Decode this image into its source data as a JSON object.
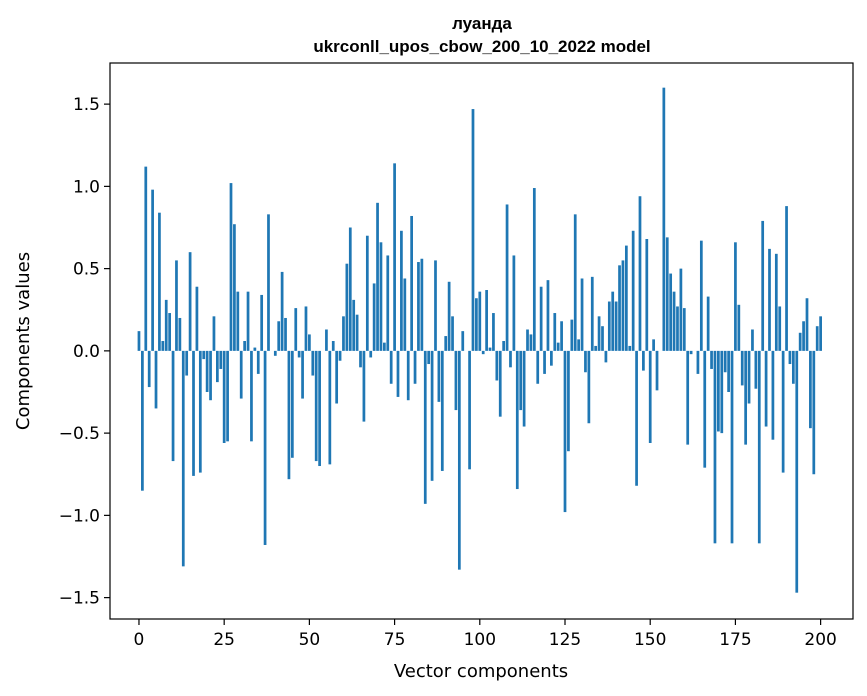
{
  "chart_data": {
    "type": "bar",
    "title": "луанда",
    "subtitle": "ukrconll_upos_cbow_200_10_2022 model",
    "xlabel": "Vector components",
    "ylabel": "Components values",
    "xlim": [
      -8.5,
      209.5
    ],
    "ylim": [
      -1.63,
      1.75
    ],
    "xticks": [
      0,
      25,
      50,
      75,
      100,
      125,
      150,
      175,
      200
    ],
    "xtick_labels": [
      "0",
      "25",
      "50",
      "75",
      "100",
      "125",
      "150",
      "175",
      "200"
    ],
    "yticks": [
      -1.5,
      -1.0,
      -0.5,
      0.0,
      0.5,
      1.0,
      1.5
    ],
    "ytick_labels": [
      "−1.5",
      "−1.0",
      "−0.5",
      "0.0",
      "0.5",
      "1.0",
      "1.5"
    ],
    "grid": false,
    "bar_color": "#1f77b4",
    "values": [
      0.12,
      -0.85,
      1.12,
      -0.22,
      0.98,
      -0.35,
      0.84,
      0.06,
      0.31,
      0.23,
      -0.67,
      0.55,
      0.2,
      -1.31,
      -0.15,
      0.6,
      -0.76,
      0.39,
      -0.74,
      -0.05,
      -0.25,
      -0.3,
      0.21,
      -0.19,
      -0.11,
      -0.56,
      -0.55,
      1.02,
      0.77,
      0.36,
      -0.29,
      0.06,
      0.36,
      -0.55,
      0.02,
      -0.14,
      0.34,
      -1.18,
      0.83,
      0.0,
      -0.03,
      0.18,
      0.48,
      0.2,
      -0.78,
      -0.65,
      0.26,
      -0.04,
      -0.29,
      0.27,
      0.1,
      -0.15,
      -0.67,
      -0.7,
      0.0,
      0.13,
      -0.69,
      0.06,
      -0.32,
      -0.06,
      0.21,
      0.53,
      0.75,
      0.31,
      0.22,
      -0.1,
      -0.43,
      0.7,
      -0.04,
      0.41,
      0.9,
      0.66,
      0.05,
      0.58,
      -0.2,
      1.14,
      -0.28,
      0.73,
      0.44,
      -0.3,
      0.82,
      -0.2,
      0.54,
      0.56,
      -0.93,
      -0.08,
      -0.79,
      0.55,
      -0.31,
      -0.73,
      0.09,
      0.42,
      0.21,
      -0.36,
      -1.33,
      0.12,
      0.0,
      -0.72,
      1.47,
      0.32,
      0.36,
      -0.02,
      0.37,
      0.02,
      0.23,
      -0.18,
      -0.4,
      0.06,
      0.89,
      -0.1,
      0.58,
      -0.84,
      -0.36,
      -0.46,
      0.13,
      0.1,
      0.99,
      -0.2,
      0.39,
      -0.14,
      0.43,
      -0.09,
      0.23,
      0.05,
      0.18,
      -0.98,
      -0.61,
      0.19,
      0.83,
      0.07,
      0.44,
      -0.13,
      -0.44,
      0.45,
      0.03,
      0.21,
      0.15,
      -0.07,
      0.3,
      0.36,
      0.3,
      0.52,
      0.55,
      0.64,
      0.03,
      0.73,
      -0.82,
      0.94,
      -0.12,
      0.68,
      -0.56,
      0.07,
      -0.24,
      0.0,
      1.6,
      0.69,
      0.47,
      0.36,
      0.27,
      0.5,
      0.26,
      -0.57,
      -0.02,
      0.0,
      -0.14,
      0.67,
      -0.71,
      0.33,
      -0.11,
      -1.17,
      -0.49,
      -0.5,
      -0.13,
      -0.25,
      -1.17,
      0.66,
      0.28,
      -0.21,
      -0.57,
      -0.32,
      0.13,
      -0.23,
      -1.17,
      0.79,
      -0.46,
      0.62,
      -0.54,
      0.59,
      0.27,
      -0.74,
      0.88,
      -0.08,
      -0.2,
      -1.47,
      0.11,
      0.18,
      0.32,
      -0.47,
      -0.75,
      0.15,
      0.21
    ]
  }
}
